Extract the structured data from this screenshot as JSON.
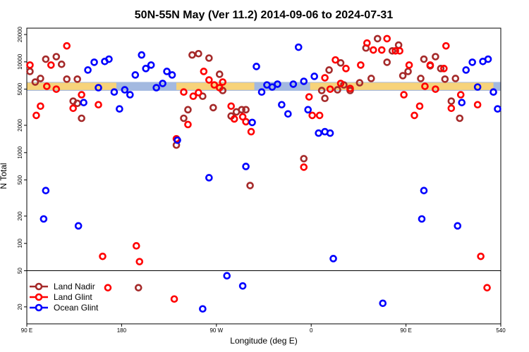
{
  "chart_data": {
    "type": "scatter",
    "title": "50N-55N May (Ver 11.2)   2014-09-06 to 2024-07-31",
    "xlabel": "Longitude (deg E)",
    "ylabel": "N Total",
    "xlim": [
      90,
      540
    ],
    "xticks": [
      {
        "value": 90,
        "label": "90 E"
      },
      180,
      {
        "value": 270,
        "label": "90 W"
      },
      {
        "value": 360,
        "label": "0"
      },
      {
        "value": 450,
        "label": "90 E"
      },
      540
    ],
    "ylim": [
      13,
      23500
    ],
    "yscale": "log",
    "yticks": [
      20000,
      10000,
      5000,
      2000,
      1000,
      500,
      200,
      100,
      50,
      20
    ],
    "legend": "lower left",
    "bands": [
      {
        "color": "#a3b9e0",
        "xlim": [
          90,
          540
        ],
        "ylim": [
          4800,
          6000
        ]
      },
      {
        "color": "#f7d37a",
        "xlim": [
          90,
          175
        ],
        "ylim": [
          4900,
          5900
        ]
      },
      {
        "color": "#f7d37a",
        "xlim": [
          232,
          306
        ],
        "ylim": [
          4900,
          5900
        ]
      },
      {
        "color": "#f7d37a",
        "xlim": [
          359,
          533
        ],
        "ylim": [
          4900,
          5900
        ]
      }
    ],
    "series": [
      {
        "name": "Land Nadir",
        "color": "#a52a2a",
        "x": [
          93,
          98,
          103,
          108,
          118,
          123,
          128,
          134,
          138,
          138,
          142,
          196,
          232,
          239,
          243,
          247,
          253,
          257,
          263,
          267,
          273,
          276,
          284,
          289,
          294,
          298,
          302,
          353,
          370,
          373,
          377,
          385,
          388,
          391,
          397,
          406,
          412,
          417,
          423,
          432,
          437,
          443,
          447,
          452,
          464,
          467,
          473,
          478,
          483,
          487,
          493,
          497,
          501
        ],
        "values": [
          7840,
          5990,
          6560,
          10700,
          11400,
          9400,
          6450,
          3690,
          3490,
          6450,
          2390,
          32.5,
          1210,
          2390,
          2970,
          11900,
          12300,
          4180,
          11000,
          3130,
          7300,
          4830,
          2530,
          2810,
          2970,
          2970,
          434,
          858,
          4830,
          3960,
          8130,
          4920,
          9740,
          5570,
          4830,
          5880,
          14200,
          6560,
          18000,
          9900,
          13200,
          15300,
          7040,
          7840,
          6560,
          10700,
          9050,
          11400,
          8440,
          6450,
          3690,
          6560,
          2390
        ]
      },
      {
        "name": "Land Glint",
        "color": "#ff0000",
        "x": [
          93,
          99,
          103,
          109,
          113,
          118,
          128,
          134,
          142,
          158,
          162,
          167,
          194,
          197,
          230,
          232,
          239,
          243,
          248,
          253,
          258,
          263,
          268,
          273,
          276,
          284,
          287,
          295,
          298,
          303,
          353,
          358,
          361,
          368,
          373,
          378,
          383,
          388,
          393,
          397,
          407,
          413,
          419,
          427,
          432,
          440,
          444,
          448,
          453,
          458,
          463,
          468,
          473,
          478,
          488,
          486,
          493,
          502,
          518,
          521,
          527
        ],
        "values": [
          9220,
          2570,
          3250,
          5380,
          9220,
          5000,
          15000,
          3080,
          4340,
          3370,
          72,
          32.5,
          94,
          63,
          24.4,
          1420,
          4650,
          2040,
          4180,
          4580,
          7840,
          6320,
          5570,
          5190,
          5990,
          3250,
          2350,
          2480,
          2190,
          1700,
          692,
          4110,
          2570,
          2570,
          6670,
          5000,
          10500,
          5780,
          8440,
          5090,
          9220,
          16100,
          13500,
          13500,
          18000,
          13200,
          13200,
          4340,
          9220,
          2570,
          3250,
          5380,
          9220,
          5000,
          15000,
          8440,
          3080,
          4340,
          3370,
          72,
          32.5
        ]
      },
      {
        "name": "Ocean Glint",
        "color": "#0000ff",
        "x": [
          106,
          108,
          139,
          144,
          148,
          154,
          158,
          164,
          168,
          173,
          178,
          183,
          188,
          193,
          199,
          203,
          208,
          213,
          219,
          223,
          228,
          233,
          257,
          263,
          280,
          295,
          298,
          304,
          308,
          313,
          318,
          323,
          328,
          332,
          338,
          343,
          348,
          353,
          357,
          363,
          367,
          373,
          378,
          381,
          428,
          465,
          467,
          499,
          503,
          507,
          513,
          518,
          523,
          528,
          533,
          537
        ],
        "values": [
          186,
          382,
          156,
          3560,
          8130,
          9900,
          5190,
          10100,
          10700,
          4650,
          3030,
          4920,
          4340,
          7170,
          11900,
          8440,
          9220,
          5190,
          5780,
          7840,
          7170,
          1370,
          19,
          529,
          44,
          34,
          704,
          2150,
          8890,
          4650,
          5570,
          5280,
          5680,
          3370,
          2670,
          5680,
          14500,
          6100,
          2970,
          6920,
          1640,
          1700,
          1640,
          68,
          21.9,
          186,
          382,
          156,
          3560,
          8130,
          9900,
          5280,
          10100,
          10700,
          4650,
          3030
        ]
      }
    ]
  }
}
